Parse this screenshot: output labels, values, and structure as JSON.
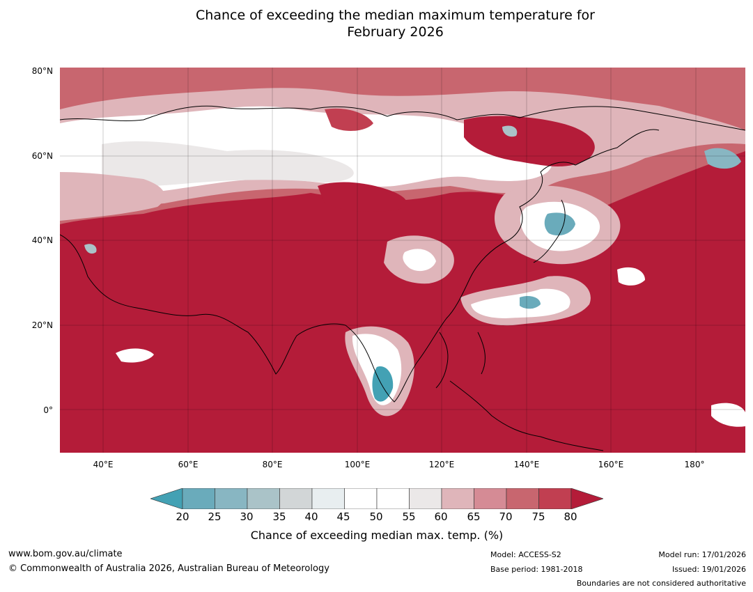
{
  "title_line1": "Chance of exceeding the median maximum temperature for",
  "title_line2": "February 2026",
  "latitude_labels": [
    "80°N",
    "60°N",
    "40°N",
    "20°N",
    "0°"
  ],
  "longitude_labels": [
    "40°E",
    "60°E",
    "80°E",
    "100°E",
    "120°E",
    "140°E",
    "160°E",
    "180°"
  ],
  "colorbar": {
    "ticks": [
      "20",
      "25",
      "30",
      "35",
      "40",
      "45",
      "50",
      "55",
      "60",
      "65",
      "70",
      "75",
      "80"
    ],
    "colors": [
      "#43a1b4",
      "#6aabbb",
      "#88b6c2",
      "#aac3c8",
      "#d2d6d7",
      "#e8eef0",
      "#ffffff",
      "#ffffff",
      "#ebe8e8",
      "#dfb5ba",
      "#d58b95",
      "#c8666f",
      "#c13f51",
      "#b41c39"
    ],
    "label": "Chance of exceeding median max. temp. (%)"
  },
  "map_colors": {
    "dominant": "#b41c39",
    "high": "#c8666f",
    "mid": "#dfb5ba",
    "neutral": "#ffffff",
    "grey": "#ebe8e8",
    "low": "#6aabbb"
  },
  "footer": {
    "website": "www.bom.gov.au/climate",
    "copyright": "© Commonwealth of Australia 2026, Australian Bureau of Meteorology",
    "model": "Model: ACCESS-S2",
    "base_period": "Base period: 1981-2018",
    "model_run": "Model run: 17/01/2026",
    "issued": "Issued: 19/01/2026",
    "disclaimer": "Boundaries are not considered authoritative"
  }
}
